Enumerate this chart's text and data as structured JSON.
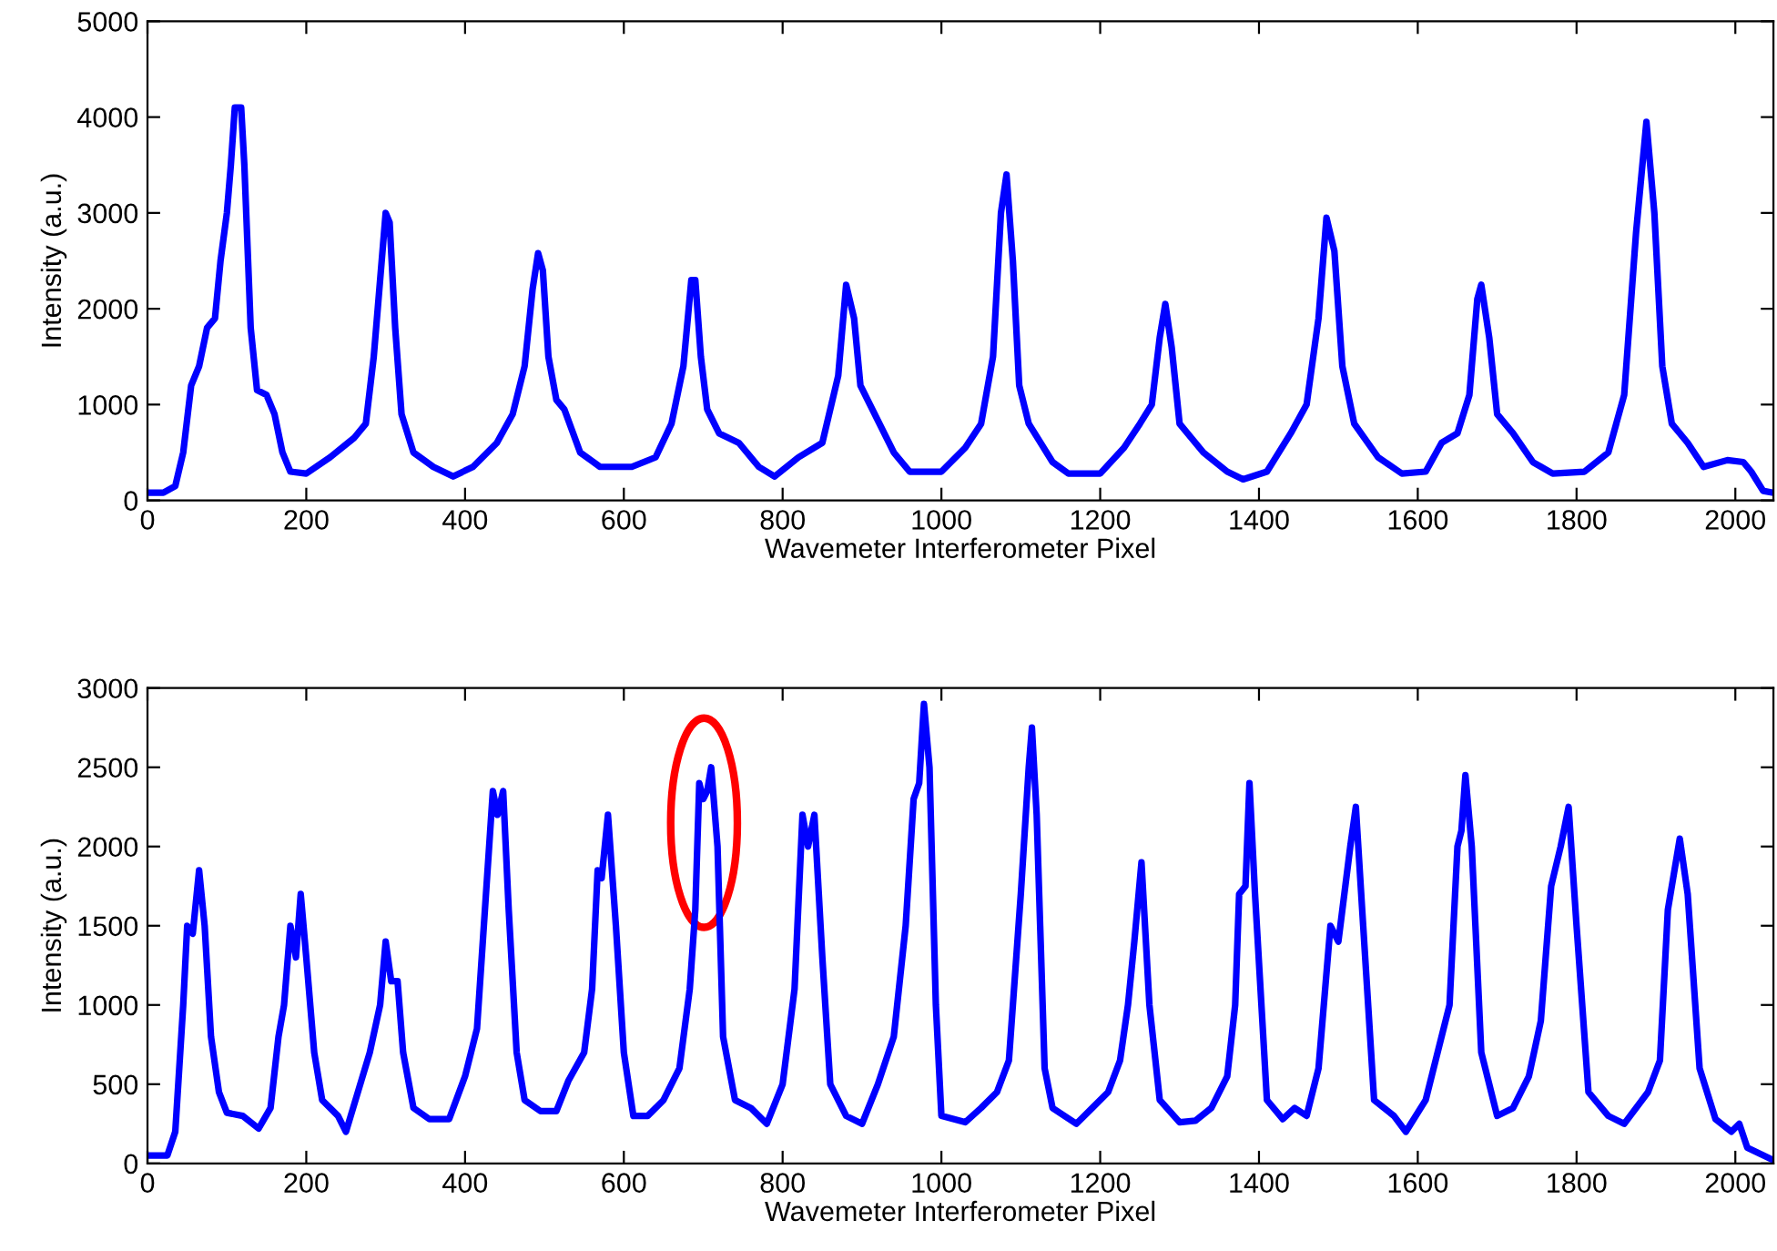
{
  "chart_data": [
    {
      "type": "line",
      "xlabel": "Wavemeter Interferometer Pixel",
      "ylabel": "Intensity (a.u.)",
      "xlim": [
        0,
        2048
      ],
      "xticks": [
        0,
        200,
        400,
        600,
        800,
        1000,
        1200,
        1400,
        1600,
        1800,
        2000
      ],
      "ylim": [
        0,
        5000
      ],
      "yticks": [
        0,
        1000,
        2000,
        3000,
        4000,
        5000
      ],
      "grid": false,
      "legend": false,
      "series": [
        {
          "color": "#0000ff",
          "x": [
            0,
            20,
            35,
            45,
            55,
            65,
            75,
            85,
            92,
            100,
            105,
            110,
            118,
            122,
            130,
            138,
            150,
            160,
            170,
            180,
            200,
            230,
            260,
            275,
            285,
            295,
            300,
            305,
            312,
            320,
            335,
            360,
            385,
            410,
            440,
            460,
            475,
            485,
            492,
            498,
            505,
            515,
            525,
            545,
            570,
            610,
            640,
            660,
            675,
            685,
            690,
            697,
            705,
            720,
            745,
            770,
            790,
            820,
            850,
            870,
            880,
            890,
            898,
            910,
            940,
            960,
            1000,
            1030,
            1050,
            1065,
            1075,
            1082,
            1090,
            1098,
            1110,
            1140,
            1160,
            1200,
            1230,
            1250,
            1265,
            1275,
            1282,
            1290,
            1300,
            1330,
            1360,
            1380,
            1410,
            1440,
            1460,
            1475,
            1485,
            1495,
            1505,
            1520,
            1550,
            1580,
            1610,
            1630,
            1650,
            1665,
            1675,
            1680,
            1690,
            1700,
            1720,
            1745,
            1770,
            1810,
            1840,
            1860,
            1875,
            1888,
            1898,
            1908,
            1920,
            1940,
            1960,
            1990,
            2010,
            2020,
            2035,
            2048
          ],
          "values": [
            80,
            80,
            150,
            500,
            1200,
            1400,
            1800,
            1900,
            2500,
            3000,
            3500,
            4100,
            4100,
            3500,
            1800,
            1150,
            1100,
            900,
            500,
            300,
            280,
            450,
            650,
            800,
            1500,
            2500,
            3000,
            2900,
            1800,
            900,
            500,
            350,
            250,
            350,
            600,
            900,
            1400,
            2200,
            2580,
            2400,
            1500,
            1050,
            950,
            500,
            350,
            350,
            450,
            800,
            1400,
            2300,
            2300,
            1500,
            950,
            700,
            600,
            350,
            250,
            450,
            600,
            1300,
            2250,
            1900,
            1200,
            1000,
            500,
            300,
            300,
            550,
            800,
            1500,
            3000,
            3400,
            2500,
            1200,
            800,
            400,
            280,
            280,
            550,
            800,
            1000,
            1700,
            2050,
            1600,
            800,
            500,
            300,
            220,
            300,
            700,
            1000,
            1900,
            2950,
            2600,
            1400,
            800,
            450,
            280,
            300,
            600,
            700,
            1100,
            2100,
            2250,
            1700,
            900,
            700,
            400,
            280,
            300,
            500,
            1100,
            2800,
            3950,
            3000,
            1400,
            800,
            600,
            350,
            420,
            400,
            300,
            100,
            80
          ]
        }
      ]
    },
    {
      "type": "line",
      "xlabel": "Wavemeter Interferometer Pixel",
      "ylabel": "Intensity (a.u.)",
      "xlim": [
        0,
        2048
      ],
      "xticks": [
        0,
        200,
        400,
        600,
        800,
        1000,
        1200,
        1400,
        1600,
        1800,
        2000
      ],
      "ylim": [
        0,
        3000
      ],
      "yticks": [
        0,
        500,
        1000,
        1500,
        2000,
        2500,
        3000
      ],
      "grid": false,
      "legend": false,
      "series": [
        {
          "color": "#0000ff",
          "x": [
            0,
            25,
            35,
            45,
            50,
            57,
            65,
            72,
            80,
            90,
            100,
            120,
            140,
            155,
            165,
            172,
            180,
            187,
            193,
            200,
            210,
            220,
            240,
            250,
            265,
            280,
            293,
            300,
            307,
            315,
            322,
            335,
            355,
            380,
            400,
            415,
            425,
            435,
            441,
            448,
            455,
            465,
            475,
            495,
            515,
            530,
            550,
            560,
            567,
            572,
            580,
            590,
            600,
            612,
            630,
            650,
            670,
            683,
            690,
            695,
            700,
            705,
            710,
            718,
            725,
            740,
            760,
            780,
            800,
            815,
            825,
            832,
            840,
            850,
            860,
            880,
            900,
            920,
            940,
            955,
            965,
            972,
            978,
            985,
            993,
            1000,
            1030,
            1050,
            1070,
            1085,
            1100,
            1110,
            1114,
            1120,
            1130,
            1140,
            1170,
            1190,
            1210,
            1225,
            1235,
            1243,
            1252,
            1262,
            1275,
            1300,
            1320,
            1340,
            1360,
            1370,
            1375,
            1383,
            1388,
            1395,
            1410,
            1430,
            1445,
            1460,
            1475,
            1490,
            1500,
            1515,
            1522,
            1530,
            1545,
            1570,
            1585,
            1610,
            1625,
            1640,
            1650,
            1655,
            1660,
            1668,
            1680,
            1700,
            1720,
            1740,
            1755,
            1768,
            1780,
            1790,
            1800,
            1815,
            1840,
            1860,
            1890,
            1905,
            1915,
            1930,
            1940,
            1955,
            1975,
            1995,
            2005,
            2015,
            2048
          ],
          "values": [
            50,
            50,
            200,
            1000,
            1500,
            1450,
            1850,
            1500,
            800,
            450,
            320,
            300,
            220,
            350,
            800,
            1000,
            1500,
            1300,
            1700,
            1300,
            700,
            400,
            300,
            200,
            450,
            700,
            1000,
            1400,
            1150,
            1150,
            700,
            350,
            280,
            280,
            550,
            850,
            1600,
            2350,
            2200,
            2350,
            1600,
            700,
            400,
            330,
            330,
            520,
            700,
            1100,
            1850,
            1800,
            2200,
            1500,
            700,
            300,
            300,
            400,
            600,
            1100,
            1600,
            2400,
            2300,
            2350,
            2500,
            2000,
            800,
            400,
            350,
            250,
            500,
            1100,
            2200,
            2000,
            2200,
            1300,
            500,
            300,
            250,
            500,
            800,
            1500,
            2300,
            2400,
            2900,
            2500,
            1000,
            300,
            260,
            350,
            450,
            650,
            1700,
            2500,
            2750,
            2200,
            600,
            350,
            250,
            350,
            450,
            650,
            1000,
            1400,
            1900,
            1000,
            400,
            260,
            270,
            350,
            550,
            1000,
            1700,
            1750,
            2400,
            1700,
            400,
            280,
            350,
            300,
            600,
            1500,
            1400,
            2000,
            2250,
            1600,
            400,
            300,
            200,
            400,
            700,
            1000,
            2000,
            2100,
            2450,
            2000,
            700,
            300,
            350,
            550,
            900,
            1750,
            2000,
            2250,
            1500,
            450,
            300,
            250,
            450,
            650,
            1600,
            2050,
            1700,
            600,
            280,
            200,
            250,
            100,
            20
          ]
        }
      ]
    }
  ]
}
